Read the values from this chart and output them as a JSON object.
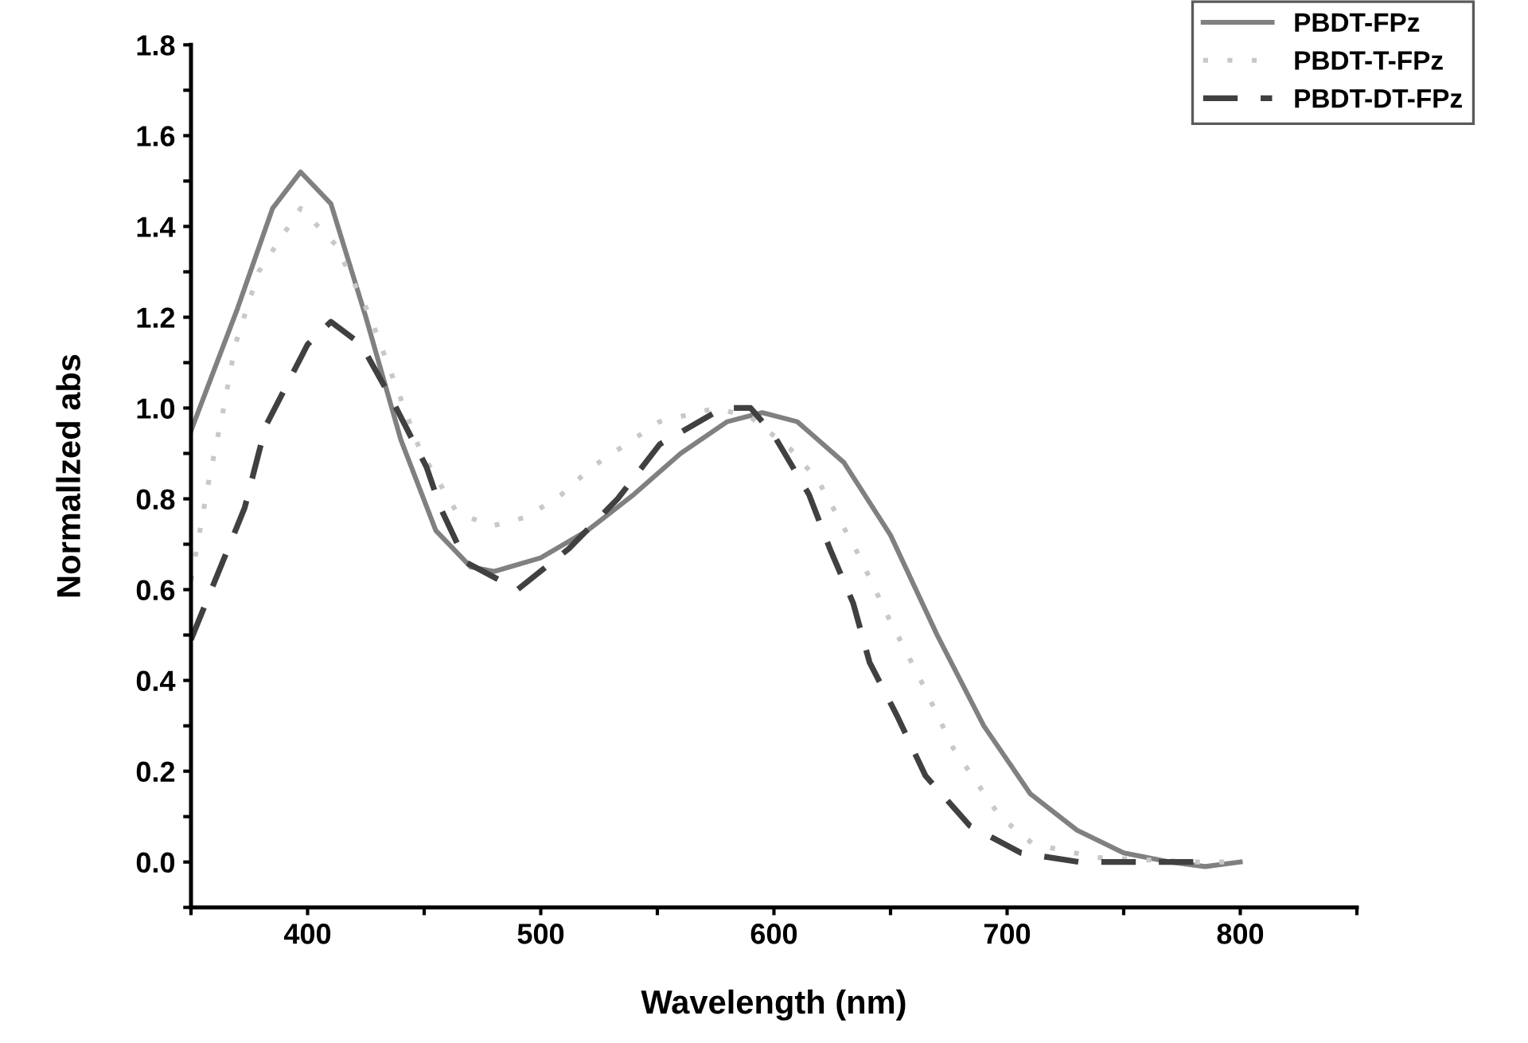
{
  "chart_data": {
    "type": "line",
    "xlabel": "Wavelength (nm)",
    "ylabel": "Normallzed abs",
    "xlim": [
      350,
      850
    ],
    "ylim": [
      -0.1,
      1.8
    ],
    "xticks": [
      {
        "value": 350,
        "label": null
      },
      400,
      {
        "value": 450,
        "label": null
      },
      500,
      {
        "value": 550,
        "label": null
      },
      600,
      {
        "value": 650,
        "label": null
      },
      700,
      {
        "value": 750,
        "label": null
      },
      800,
      {
        "value": 850,
        "label": null
      }
    ],
    "yticks": [
      {
        "value": -0.1,
        "label": null
      },
      {
        "value": 0,
        "label": "0.0"
      },
      {
        "value": 0.1,
        "label": null
      },
      0.2,
      {
        "value": 0.3,
        "label": null
      },
      0.4,
      {
        "value": 0.5,
        "label": null
      },
      0.6,
      {
        "value": 0.7,
        "label": null
      },
      0.8,
      {
        "value": 0.9,
        "label": null
      },
      {
        "value": 1.0,
        "label": "1.0"
      },
      {
        "value": 1.1,
        "label": null
      },
      1.2,
      {
        "value": 1.3,
        "label": null
      },
      1.4,
      {
        "value": 1.5,
        "label": null
      },
      1.6,
      {
        "value": 1.7,
        "label": null
      },
      1.8
    ],
    "grid": false,
    "legend": "top right",
    "series": [
      {
        "name": "PBDT-FPz",
        "color": "#808080",
        "line_style": "solid",
        "x": [
          350,
          370,
          385,
          397,
          410,
          425,
          440,
          455,
          470,
          480,
          500,
          520,
          540,
          560,
          580,
          595,
          610,
          630,
          650,
          670,
          690,
          710,
          730,
          750,
          770,
          785,
          800
        ],
        "values": [
          0.95,
          1.22,
          1.44,
          1.52,
          1.45,
          1.2,
          0.93,
          0.73,
          0.65,
          0.64,
          0.67,
          0.73,
          0.81,
          0.9,
          0.97,
          0.99,
          0.97,
          0.88,
          0.72,
          0.5,
          0.3,
          0.15,
          0.07,
          0.02,
          0.0,
          -0.01,
          0.0
        ]
      },
      {
        "name": "PBDT-T-FPz",
        "color": "#c8c8c8",
        "line_style": "dotted",
        "x": [
          350,
          358,
          364,
          369,
          379,
          397,
          412,
          427,
          432,
          448,
          464,
          479,
          494,
          509,
          522,
          551,
          575,
          590,
          607,
          619,
          636,
          649,
          663,
          677,
          697,
          711,
          738,
          780,
          800
        ],
        "values": [
          0.62,
          0.85,
          1.0,
          1.14,
          1.3,
          1.44,
          1.36,
          1.2,
          1.13,
          0.91,
          0.77,
          0.74,
          0.76,
          0.81,
          0.87,
          0.97,
          1.0,
          0.98,
          0.91,
          0.84,
          0.68,
          0.54,
          0.4,
          0.25,
          0.1,
          0.04,
          0.01,
          0.0,
          0.0
        ]
      },
      {
        "name": "PBDT-DT-FPz",
        "color": "#404040",
        "line_style": "dashed",
        "x": [
          350,
          373,
          382,
          400,
          410,
          423,
          436,
          451,
          457,
          468,
          490,
          512,
          533,
          551,
          578,
          590,
          600,
          615,
          624,
          634,
          641,
          653,
          665,
          684,
          706,
          731,
          780
        ],
        "values": [
          0.49,
          0.78,
          0.96,
          1.14,
          1.19,
          1.14,
          1.02,
          0.87,
          0.78,
          0.66,
          0.6,
          0.69,
          0.8,
          0.92,
          1.0,
          1.0,
          0.94,
          0.81,
          0.69,
          0.57,
          0.44,
          0.32,
          0.19,
          0.08,
          0.02,
          0.0,
          0.0
        ]
      }
    ]
  }
}
